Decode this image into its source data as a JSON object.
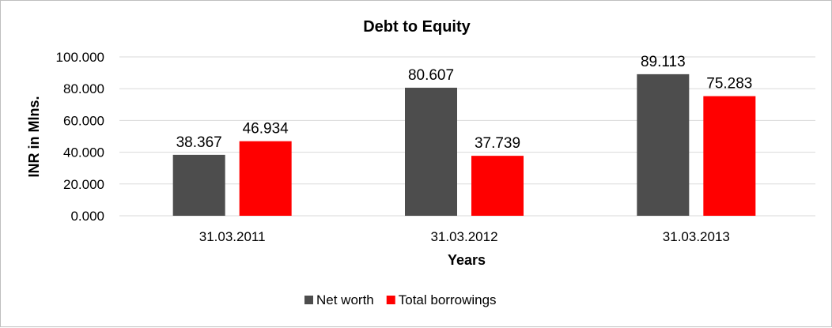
{
  "chart_data": {
    "type": "bar",
    "title": "Debt to Equity",
    "xlabel": "Years",
    "ylabel": "INR in Mlns.",
    "categories": [
      "31.03.2011",
      "31.03.2012",
      "31.03.2013"
    ],
    "series": [
      {
        "name": "Net worth",
        "values": [
          38.367,
          80.607,
          89.113
        ],
        "labels": [
          "38.367",
          "80.607",
          "89.113"
        ],
        "color": "#4d4d4d"
      },
      {
        "name": "Total borrowings",
        "values": [
          46.934,
          37.739,
          75.283
        ],
        "labels": [
          "46.934",
          "37.739",
          "75.283"
        ],
        "color": "#ff0000"
      }
    ],
    "ylim": [
      0,
      100
    ],
    "yticks": [
      0,
      20,
      40,
      60,
      80,
      100
    ],
    "ytick_labels": [
      "0.000",
      "20.000",
      "40.000",
      "60.000",
      "80.000",
      "100.000"
    ],
    "grid": true,
    "legend_position": "bottom"
  }
}
